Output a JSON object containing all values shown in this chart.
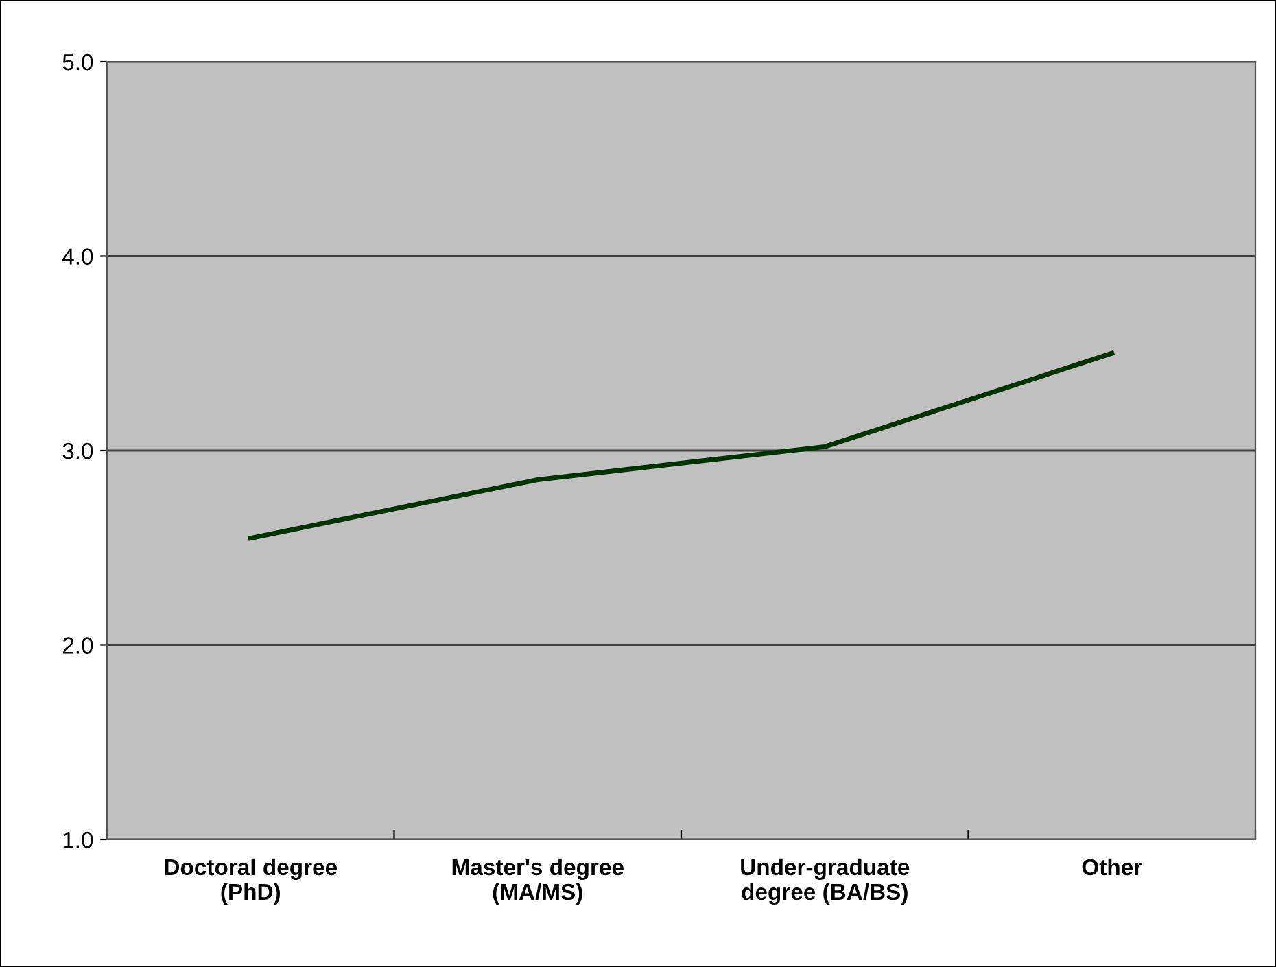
{
  "chart_data": {
    "type": "line",
    "categories": [
      "Doctoral degree\n(PhD)",
      "Master's degree\n(MA/MS)",
      "Under-graduate\ndegree (BA/BS)",
      "Other"
    ],
    "series": [
      {
        "color": "#003300",
        "values": [
          2.55,
          2.85,
          3.02,
          3.5
        ]
      }
    ],
    "ylim": [
      1.0,
      5.0
    ],
    "yticks": [
      {
        "value": 1,
        "label": "1.0"
      },
      {
        "value": 2,
        "label": "2.0"
      },
      {
        "value": 3,
        "label": "3.0"
      },
      {
        "value": 4,
        "label": "4.0"
      },
      {
        "value": 5,
        "label": "5.0"
      }
    ],
    "grid": "y",
    "marker": "none",
    "line_style": "solid",
    "legend": false
  }
}
